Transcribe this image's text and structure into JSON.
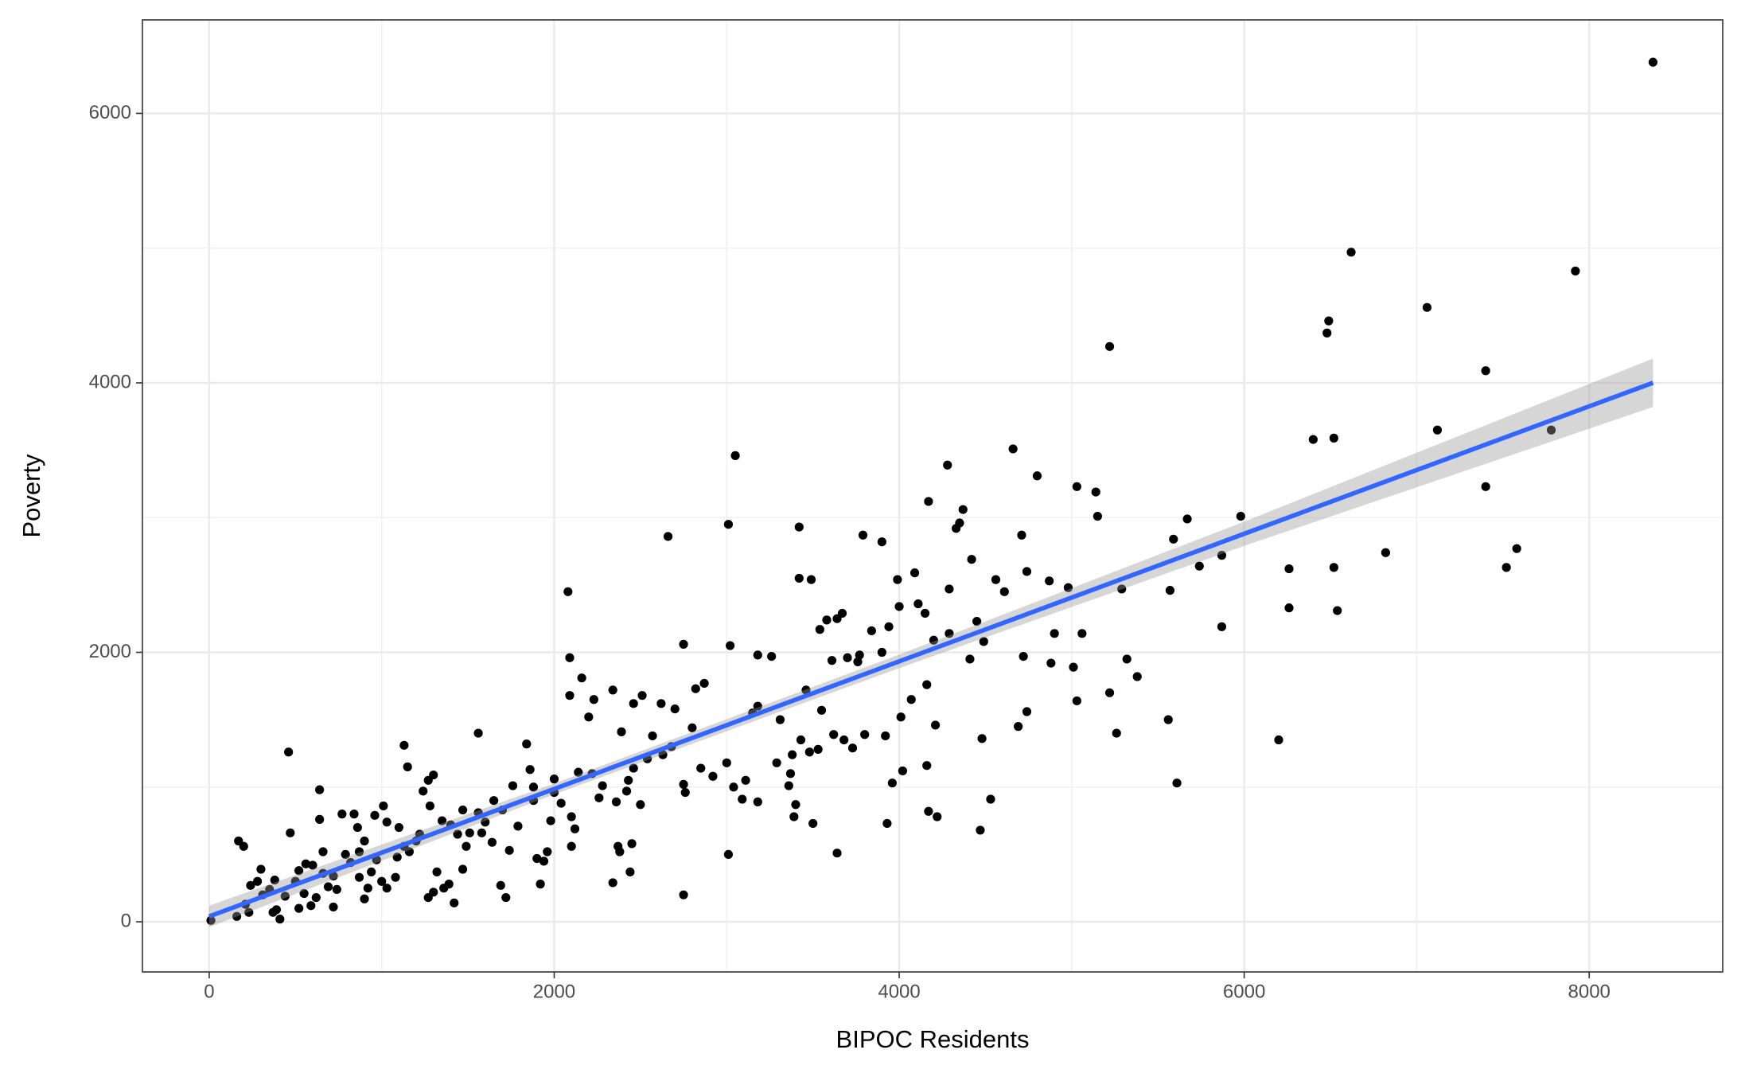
{
  "chart_data": {
    "type": "scatter",
    "x_label": "BIPOC Residents",
    "y_label": "Poverty",
    "xlim": [
      -387,
      8774
    ],
    "ylim": [
      -372,
      6694
    ],
    "xticks": [
      0,
      2000,
      4000,
      6000,
      8000
    ],
    "yticks": [
      0,
      2000,
      4000,
      6000
    ],
    "grid": true,
    "color": "#000000",
    "x": [
      8370,
      6620,
      7920,
      7060,
      6490,
      6480,
      5220,
      7400,
      6400,
      6520,
      7120,
      7780,
      4660,
      3050,
      4280,
      4800,
      7400,
      5030,
      5140,
      4170,
      4370,
      5150,
      5980,
      5670,
      3010,
      3420,
      4350,
      4330,
      2660,
      3790,
      3900,
      4710,
      5590,
      7580,
      6820,
      5870,
      4420,
      5740,
      6520,
      7520,
      6260,
      4740,
      4090,
      3990,
      3420,
      3490,
      4560,
      4870,
      4980,
      5290,
      4290,
      5570,
      2080,
      4610,
      6540,
      6260,
      4110,
      4000,
      4150,
      4450,
      3670,
      3640,
      3580,
      5060,
      4900,
      4290,
      3840,
      3940,
      3540,
      5870,
      4490,
      4200,
      4720,
      5320,
      4880,
      5010,
      5380,
      3260,
      3180,
      3020,
      2750,
      2090,
      3610,
      3700,
      3760,
      3770,
      4410,
      5220,
      5030,
      4160,
      4070,
      3550,
      2870,
      2820,
      2160,
      2340,
      2230,
      2460,
      2510,
      2620,
      2700,
      2090,
      3180,
      3460,
      4740,
      4010,
      4210,
      4690,
      4480,
      5560,
      5260,
      6200,
      5610,
      4530,
      4470,
      3930,
      3640,
      3500,
      3390,
      3010,
      2750,
      2440,
      2380,
      2340,
      2450,
      2370,
      4170,
      4220,
      4160,
      4020,
      3920,
      3960,
      3730,
      3680,
      3620,
      3530,
      3480,
      3430,
      3380,
      3370,
      3360,
      3400,
      3180,
      3090,
      3040,
      2920,
      2850,
      2760,
      2750,
      2630,
      2460,
      2430,
      2420,
      2360,
      2280,
      2220,
      2140,
      2120,
      2100,
      2040,
      1980,
      1960,
      1940,
      1920,
      1900,
      1880,
      1840,
      1790,
      1740,
      1720,
      1690,
      1640,
      1580,
      1560,
      1510,
      1470,
      1470,
      1420,
      1390,
      1360,
      1320,
      1300,
      1270,
      1280,
      1270,
      1300,
      1240,
      1220,
      1150,
      1130,
      1130,
      1090,
      1080,
      1030,
      1030,
      1010,
      970,
      940,
      920,
      900,
      870,
      870,
      860,
      840,
      790,
      770,
      690,
      660,
      660,
      640,
      640,
      620,
      590,
      550,
      520,
      500,
      470,
      460,
      440,
      410,
      390,
      380,
      350,
      300,
      280,
      240,
      200,
      170,
      160,
      210,
      10,
      230,
      370,
      520,
      720,
      1000,
      1160,
      1400,
      1600,
      1700,
      1860,
      2000,
      2200,
      2390,
      2570,
      2680,
      2800,
      3000,
      3110,
      3290,
      3800,
      3900,
      3310,
      3150,
      1350,
      1490,
      1760,
      560,
      740,
      820,
      1100,
      1200,
      1440,
      1560,
      1650,
      1880,
      2000,
      2260,
      2500,
      2540,
      2100,
      600,
      720,
      310,
      900,
      960
    ],
    "values": [
      6380,
      4970,
      4830,
      4560,
      4460,
      4370,
      4270,
      4090,
      3580,
      3590,
      3650,
      3650,
      3510,
      3460,
      3390,
      3310,
      3230,
      3230,
      3190,
      3120,
      3060,
      3010,
      3010,
      2990,
      2950,
      2930,
      2960,
      2920,
      2860,
      2870,
      2820,
      2870,
      2840,
      2770,
      2740,
      2720,
      2690,
      2640,
      2630,
      2630,
      2620,
      2600,
      2590,
      2540,
      2550,
      2540,
      2540,
      2530,
      2480,
      2470,
      2470,
      2460,
      2450,
      2450,
      2310,
      2330,
      2360,
      2340,
      2290,
      2230,
      2290,
      2250,
      2240,
      2140,
      2140,
      2140,
      2160,
      2190,
      2170,
      2190,
      2080,
      2090,
      1970,
      1950,
      1920,
      1890,
      1820,
      1970,
      1980,
      2050,
      2060,
      1960,
      1940,
      1960,
      1930,
      1980,
      1950,
      1700,
      1640,
      1760,
      1650,
      1570,
      1770,
      1730,
      1810,
      1720,
      1650,
      1620,
      1680,
      1620,
      1580,
      1680,
      1600,
      1720,
      1560,
      1520,
      1460,
      1450,
      1360,
      1500,
      1400,
      1350,
      1030,
      910,
      680,
      730,
      510,
      730,
      780,
      500,
      200,
      370,
      520,
      290,
      580,
      560,
      820,
      780,
      1160,
      1120,
      1380,
      1030,
      1290,
      1350,
      1390,
      1280,
      1260,
      1350,
      1240,
      1100,
      1010,
      870,
      890,
      910,
      1000,
      1080,
      1140,
      960,
      1020,
      1240,
      1140,
      1050,
      970,
      890,
      1010,
      1100,
      1110,
      690,
      780,
      880,
      750,
      520,
      450,
      280,
      470,
      1000,
      1320,
      710,
      530,
      180,
      270,
      590,
      660,
      1400,
      660,
      390,
      830,
      140,
      280,
      250,
      370,
      220,
      180,
      860,
      1050,
      1090,
      970,
      650,
      1150,
      1310,
      560,
      480,
      330,
      250,
      740,
      860,
      460,
      370,
      250,
      170,
      330,
      520,
      700,
      800,
      500,
      800,
      260,
      360,
      520,
      760,
      980,
      180,
      120,
      210,
      380,
      300,
      660,
      1260,
      190,
      20,
      90,
      310,
      240,
      390,
      300,
      270,
      560,
      600,
      40,
      130,
      10,
      70,
      70,
      100,
      110,
      300,
      520,
      720,
      740,
      830,
      1130,
      1060,
      1520,
      1410,
      1380,
      1300,
      1440,
      1180,
      1050,
      1180,
      1390,
      2000,
      1500,
      1550,
      750,
      560,
      1010,
      430,
      240,
      440,
      700,
      600,
      650,
      810,
      900,
      900,
      960,
      920,
      870,
      1210,
      560,
      420,
      340,
      200,
      600,
      790
    ],
    "fit": {
      "color": "#3366ff",
      "band_color": "#999999",
      "x": [
        0,
        2000,
        4000,
        6000,
        8370
      ],
      "values": [
        40,
        986,
        1933,
        2880,
        4001
      ],
      "lower": [
        -40,
        946,
        1883,
        2790,
        3821
      ],
      "upper": [
        120,
        1026,
        1983,
        2970,
        4181
      ]
    }
  }
}
